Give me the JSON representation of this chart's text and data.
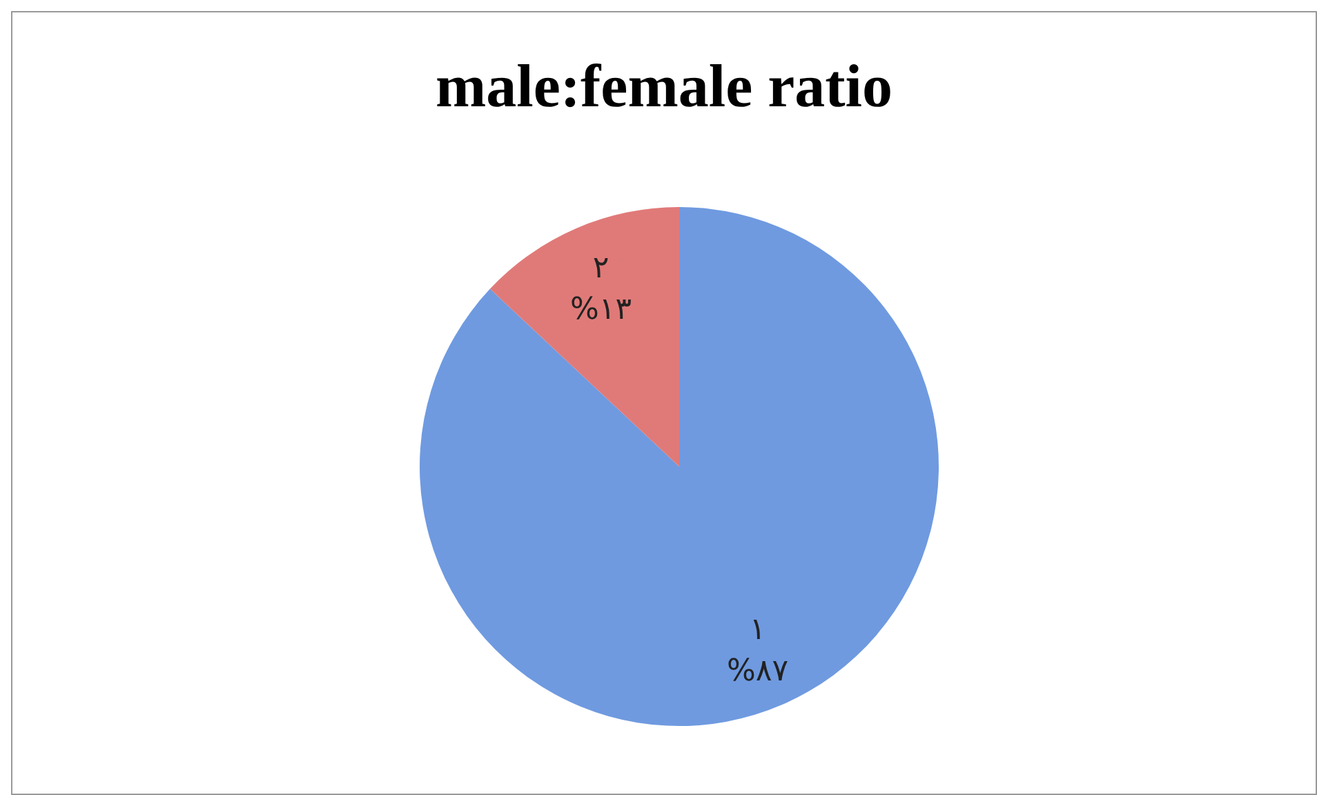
{
  "chart_data": {
    "type": "pie",
    "title": "male:female ratio",
    "categories": [
      "١",
      "٢"
    ],
    "values": [
      87,
      13
    ],
    "colors": [
      "#6f9ae0",
      "#e07a78"
    ],
    "value_labels": [
      "%٨٧",
      "%١٣"
    ],
    "legend": false
  }
}
